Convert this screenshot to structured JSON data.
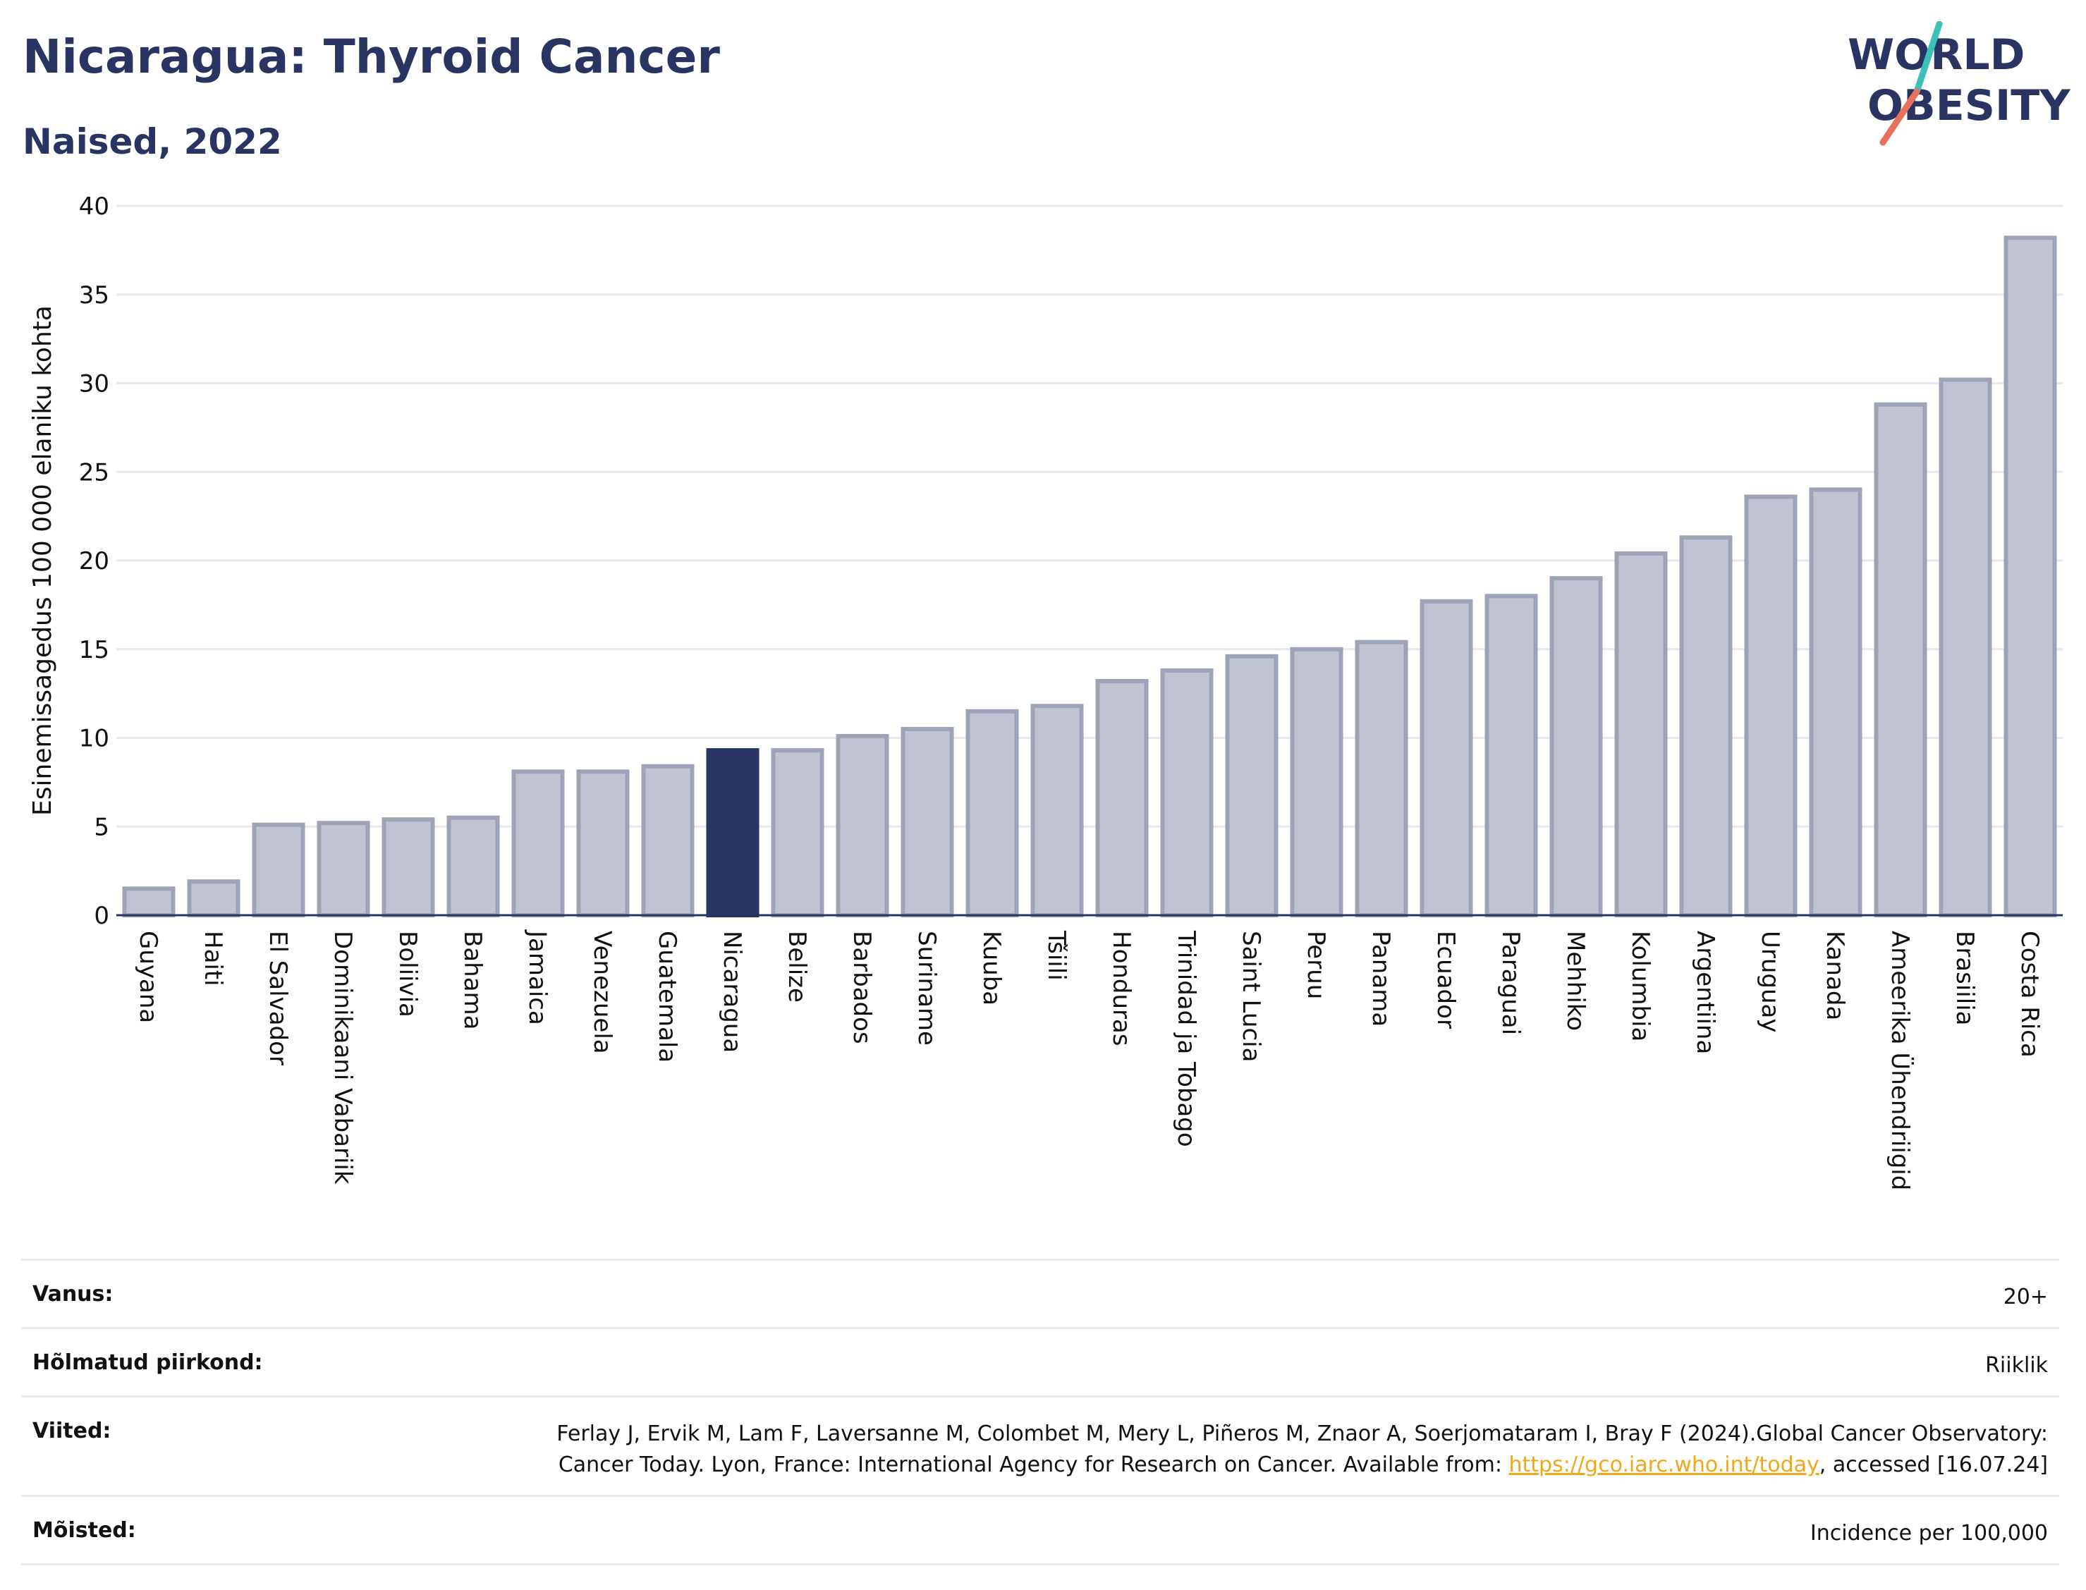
{
  "header": {
    "title": "Nicaragua: Thyroid Cancer",
    "subtitle": "Naised, 2022"
  },
  "logo": {
    "line1": "WORLD",
    "line2": "OBESITY"
  },
  "colors": {
    "bar": "#c0c3d0",
    "bar_stroke": "#9ea3b8",
    "highlight": "#2a3462",
    "title": "#2a3462",
    "grid": "#e8e8ee",
    "link": "#f0a81a",
    "logo_teal": "#3cc0b8",
    "logo_coral": "#e8705f"
  },
  "chart_data": {
    "type": "bar",
    "ylabel": "Esinemissagedus 100 000 elaniku kohta",
    "ylim": [
      0,
      40
    ],
    "yticks": [
      0,
      5,
      10,
      15,
      20,
      25,
      30,
      35,
      40
    ],
    "grid": true,
    "highlight": "Nicaragua",
    "categories": [
      "Guyana",
      "Haiti",
      "El Salvador",
      "Dominikaani Vabariik",
      "Boliivia",
      "Bahama",
      "Jamaica",
      "Venezuela",
      "Guatemala",
      "Nicaragua",
      "Belize",
      "Barbados",
      "Suriname",
      "Kuuba",
      "Tšiili",
      "Honduras",
      "Trinidad ja Tobago",
      "Saint Lucia",
      "Peruu",
      "Panama",
      "Ecuador",
      "Paraguai",
      "Mehhiko",
      "Kolumbia",
      "Argentiina",
      "Uruguay",
      "Kanada",
      "Ameerika Ühendriigid",
      "Brasiilia",
      "Costa Rica"
    ],
    "values": [
      1.5,
      1.9,
      5.1,
      5.2,
      5.4,
      5.5,
      8.1,
      8.1,
      8.4,
      9.3,
      9.3,
      10.1,
      10.5,
      11.5,
      11.8,
      13.2,
      13.8,
      14.6,
      15.0,
      15.4,
      17.7,
      18.0,
      19.0,
      20.4,
      21.3,
      23.6,
      24.0,
      28.8,
      30.2,
      38.2
    ]
  },
  "info": {
    "age_label": "Vanus:",
    "age_value": "20+",
    "region_label": "Hõlmatud piirkond:",
    "region_value": "Riiklik",
    "refs_label": "Viited:",
    "refs_text_1": "Ferlay J, Ervik M, Lam F, Laversanne M, Colombet M, Mery L, Piñeros M, Znaor A, Soerjomataram I, Bray F (2024).Global Cancer Observatory: Cancer Today. Lyon, France: International Agency for Research on Cancer. Available from: ",
    "refs_link": "https://gco.iarc.who.int/today",
    "refs_text_2": ", accessed [16.07.24]",
    "def_label": "Mõisted:",
    "def_value": "Incidence per 100,000"
  }
}
